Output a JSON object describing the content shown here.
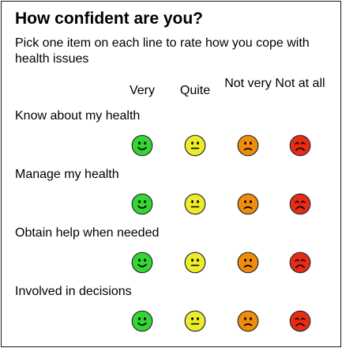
{
  "title": "How confident are you?",
  "subtitle": "Pick one item on each line to rate how you cope with health issues",
  "columns": [
    {
      "label": "Very",
      "face": "happy-face",
      "color": "#33d633"
    },
    {
      "label": "Quite",
      "face": "neutral-face",
      "color": "#ecec2a"
    },
    {
      "label": "Not very",
      "face": "frown-face",
      "color": "#f08c0c"
    },
    {
      "label": "Not at all",
      "face": "sad-face",
      "color": "#e82b14"
    }
  ],
  "rows": [
    {
      "label": "Know about my health"
    },
    {
      "label": "Manage my health"
    },
    {
      "label": "Obtain help when needed"
    },
    {
      "label": "Involved in decisions"
    }
  ]
}
